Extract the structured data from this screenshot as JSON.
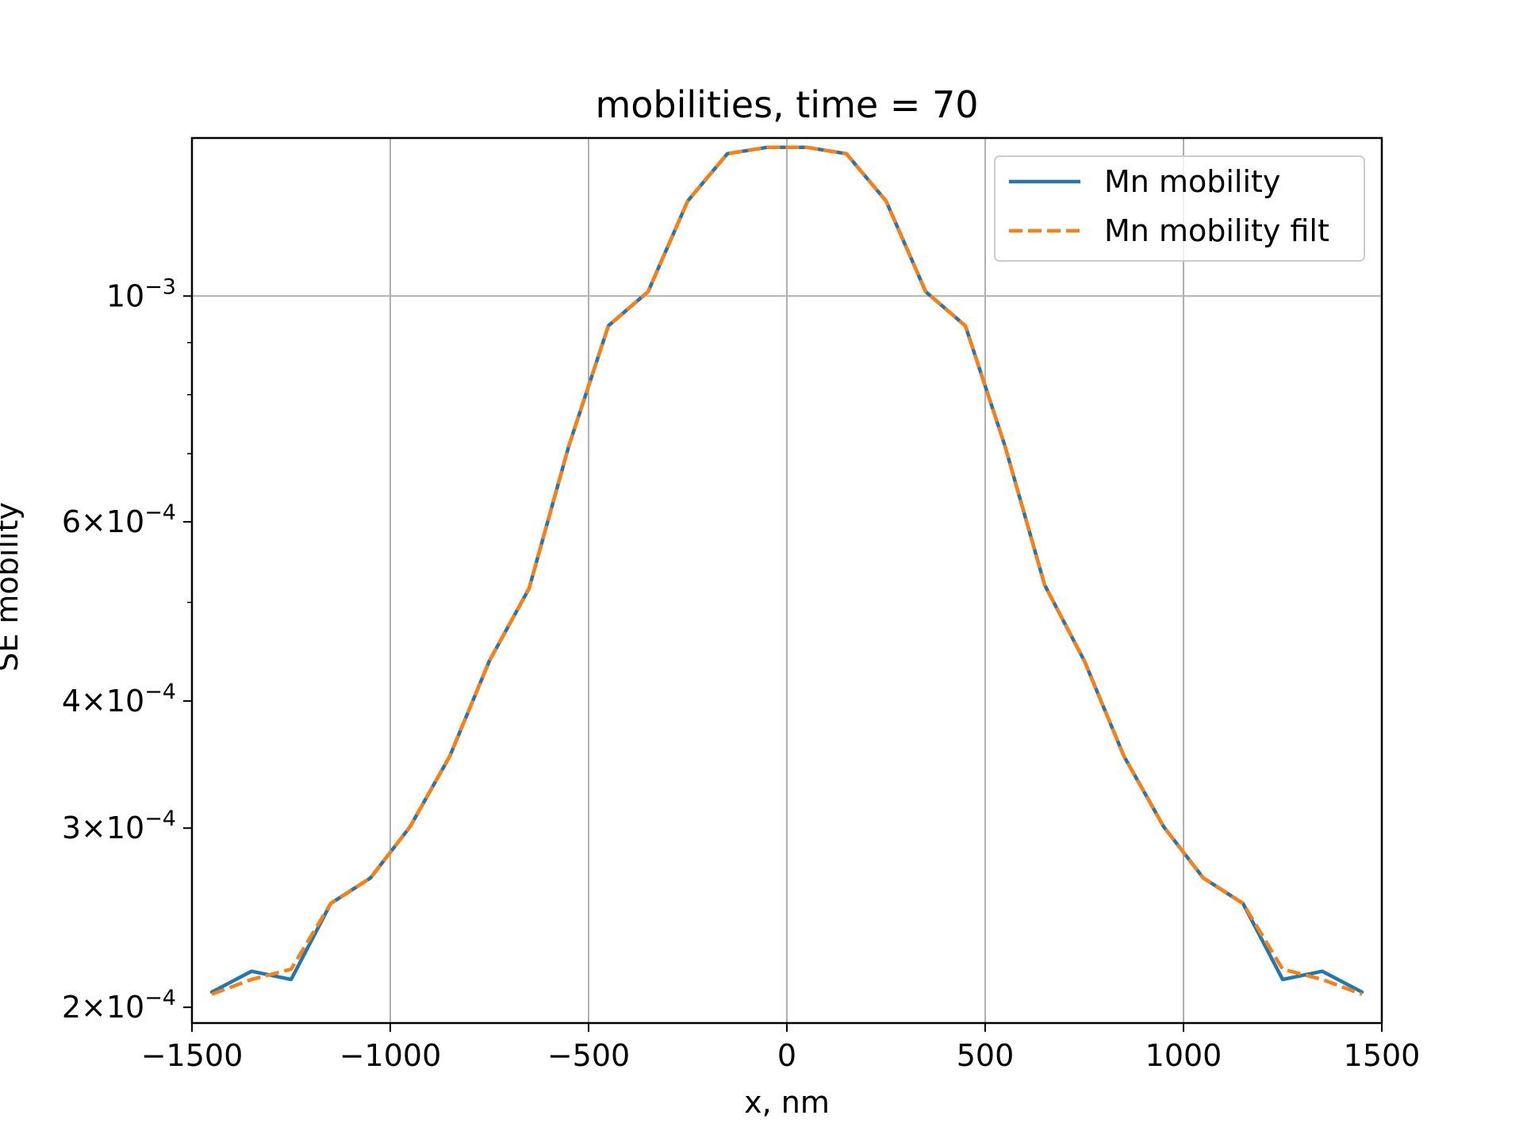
{
  "chart_data": {
    "type": "line",
    "title": "mobilities, time = 70",
    "xlabel": "x, nm",
    "ylabel": "SE mobility",
    "xlim": [
      -1500,
      1500
    ],
    "ylim": [
      0.000193,
      0.00143
    ],
    "yscale": "log",
    "grid": true,
    "legend_position": "top-right",
    "x_ticks": [
      -1500,
      -1000,
      -500,
      0,
      500,
      1000,
      1500
    ],
    "x_tick_labels": [
      "−1500",
      "−1000",
      "−500",
      "0",
      "500",
      "1000",
      "1500"
    ],
    "y_ticks": [
      {
        "value": 0.001,
        "base": "10",
        "exp": "−3"
      },
      {
        "value": 0.0006,
        "base": "6×10",
        "exp": "−4"
      },
      {
        "value": 0.0004,
        "base": "4×10",
        "exp": "−4"
      },
      {
        "value": 0.0003,
        "base": "3×10",
        "exp": "−4"
      },
      {
        "value": 0.0002,
        "base": "2×10",
        "exp": "−4"
      }
    ],
    "y_minor_ticks": [
      0.0005,
      0.0007,
      0.0008,
      0.0009
    ],
    "x": [
      -1450,
      -1350,
      -1250,
      -1150,
      -1050,
      -950,
      -850,
      -750,
      -650,
      -550,
      -450,
      -350,
      -250,
      -150,
      -50,
      50,
      150,
      250,
      350,
      450,
      550,
      650,
      750,
      850,
      950,
      1050,
      1150,
      1250,
      1350,
      1450
    ],
    "series": [
      {
        "name": "Mn mobility",
        "color": "#1f77b4",
        "style": "solid",
        "values": [
          0.000207,
          0.000217,
          0.000213,
          0.000253,
          0.000268,
          0.000301,
          0.000353,
          0.000438,
          0.000516,
          0.000712,
          0.000935,
          0.00101,
          0.00124,
          0.00138,
          0.0014,
          0.0014,
          0.00138,
          0.00124,
          0.00101,
          0.000935,
          0.000712,
          0.00052,
          0.000438,
          0.000353,
          0.000301,
          0.000268,
          0.000253,
          0.000213,
          0.000217,
          0.000207
        ]
      },
      {
        "name": "Mn mobility filt",
        "color": "#ff7f0e",
        "style": "dashed",
        "values": [
          0.000206,
          0.000213,
          0.000218,
          0.000253,
          0.000268,
          0.000301,
          0.000353,
          0.000438,
          0.000516,
          0.000712,
          0.000935,
          0.00101,
          0.00124,
          0.00138,
          0.0014,
          0.0014,
          0.00138,
          0.00124,
          0.00101,
          0.000935,
          0.000712,
          0.00052,
          0.000438,
          0.000353,
          0.000301,
          0.000268,
          0.000253,
          0.000218,
          0.000213,
          0.000206
        ]
      }
    ]
  }
}
